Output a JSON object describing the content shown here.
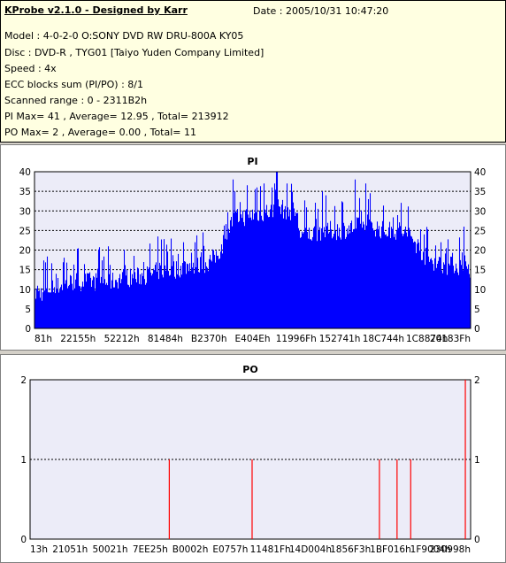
{
  "info": {
    "title": "KProbe v2.1.0 - Designed by Karr",
    "date": "Date : 2005/10/31 10:47:20",
    "lines": [
      "Model : 4-0-2-0 O:SONY    DVD RW DRU-800A  KY05",
      "Disc : DVD-R , TYG01 [Taiyo Yuden Company Limited]",
      "Speed : 4x",
      "ECC blocks sum (PI/PO) : 8/1",
      "Scanned range : 0 - 2311B2h",
      "PI Max= 41 , Average= 12.95 , Total= 213912",
      "PO Max= 2 , Average= 0.00 , Total= 11"
    ]
  },
  "colors": {
    "bar": "#0000ff",
    "po_line": "#ff0000",
    "plot_bg": "#ececf8",
    "grid": "#000000"
  },
  "chart_data": [
    {
      "type": "area",
      "title": "PI",
      "ylim": [
        0,
        40
      ],
      "yticks": [
        0,
        5,
        10,
        15,
        20,
        25,
        30,
        35,
        40
      ],
      "xticks": [
        "81h",
        "22155h",
        "52212h",
        "81484h",
        "B2370h",
        "E404Eh",
        "11996Fh",
        "152741h",
        "18C744h",
        "1C8874h",
        "20183Fh"
      ],
      "grid": true,
      "profile": [
        [
          0.0,
          8
        ],
        [
          0.004,
          10
        ],
        [
          0.01,
          9
        ],
        [
          0.03,
          10
        ],
        [
          0.06,
          11
        ],
        [
          0.09,
          12
        ],
        [
          0.12,
          12
        ],
        [
          0.15,
          12
        ],
        [
          0.18,
          12
        ],
        [
          0.2,
          13
        ],
        [
          0.23,
          13
        ],
        [
          0.27,
          14
        ],
        [
          0.29,
          15
        ],
        [
          0.32,
          15
        ],
        [
          0.35,
          16
        ],
        [
          0.38,
          16
        ],
        [
          0.4,
          17
        ],
        [
          0.41,
          18
        ],
        [
          0.42,
          19
        ],
        [
          0.43,
          21
        ],
        [
          0.44,
          25
        ],
        [
          0.46,
          28
        ],
        [
          0.5,
          29
        ],
        [
          0.54,
          30
        ],
        [
          0.56,
          31
        ],
        [
          0.58,
          30
        ],
        [
          0.6,
          30
        ],
        [
          0.61,
          24
        ],
        [
          0.63,
          24
        ],
        [
          0.66,
          25
        ],
        [
          0.7,
          25
        ],
        [
          0.74,
          26
        ],
        [
          0.78,
          26
        ],
        [
          0.8,
          25
        ],
        [
          0.84,
          25
        ],
        [
          0.86,
          24
        ],
        [
          0.88,
          21
        ],
        [
          0.9,
          18
        ],
        [
          0.92,
          17
        ],
        [
          0.94,
          16
        ],
        [
          0.97,
          16
        ],
        [
          1.0,
          15
        ]
      ],
      "peaks": [
        [
          0.455,
          38
        ],
        [
          0.51,
          36
        ],
        [
          0.526,
          37
        ],
        [
          0.545,
          36
        ],
        [
          0.556,
          41
        ],
        [
          0.58,
          37
        ],
        [
          0.66,
          35
        ],
        [
          0.735,
          38
        ],
        [
          0.76,
          37
        ],
        [
          0.895,
          24
        ],
        [
          0.985,
          26
        ],
        [
          0.33,
          19
        ],
        [
          0.41,
          20
        ]
      ]
    },
    {
      "type": "bar",
      "title": "PO",
      "ylim": [
        0,
        2
      ],
      "yticks": [
        0,
        1,
        2
      ],
      "xticks": [
        "13h",
        "21051h",
        "50021h",
        "7EE25h",
        "B0002h",
        "E0757h",
        "11481Fh",
        "14D004h",
        "1856F3h",
        "1BF016h",
        "1F9004h",
        "230998h"
      ],
      "grid": true,
      "points": [
        {
          "x": 0.316,
          "y": 1
        },
        {
          "x": 0.504,
          "y": 1
        },
        {
          "x": 0.793,
          "y": 1
        },
        {
          "x": 0.833,
          "y": 1
        },
        {
          "x": 0.864,
          "y": 1
        },
        {
          "x": 0.988,
          "y": 2
        }
      ]
    }
  ]
}
